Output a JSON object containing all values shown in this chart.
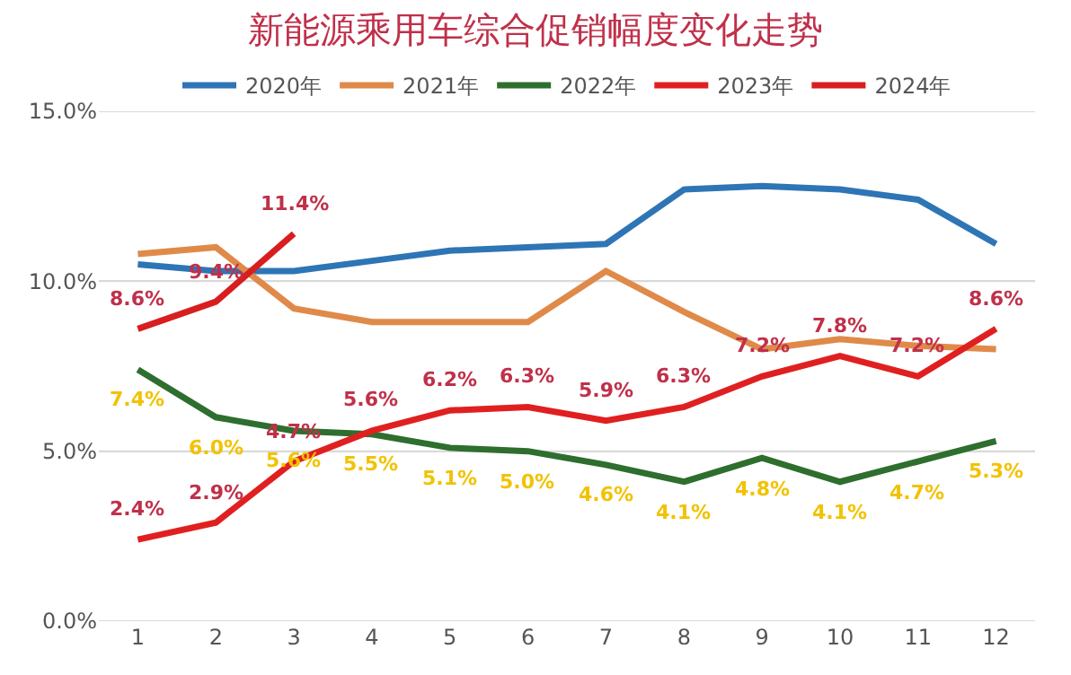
{
  "chart_data": {
    "type": "line",
    "title": "新能源乘用车综合促销幅度变化走势",
    "x": [
      1,
      2,
      3,
      4,
      5,
      6,
      7,
      8,
      9,
      10,
      11,
      12
    ],
    "xlim": [
      0.5,
      12.5
    ],
    "xticks": [
      1,
      2,
      3,
      4,
      5,
      6,
      7,
      8,
      9,
      10,
      11,
      12
    ],
    "ylim": [
      0,
      15
    ],
    "yticks": [
      {
        "value": 0,
        "label": "0.0%"
      },
      {
        "value": 5,
        "label": "5.0%"
      },
      {
        "value": 10,
        "label": "10.0%"
      },
      {
        "value": 15,
        "label": "15.0%"
      }
    ],
    "grid": "y",
    "legend": "top",
    "tick_labels": "x",
    "series": [
      {
        "name": "2020年",
        "color": "#2e75b6",
        "values": [
          10.5,
          10.3,
          10.3,
          10.6,
          10.9,
          11.0,
          11.1,
          12.7,
          12.8,
          12.7,
          12.4,
          11.1
        ]
      },
      {
        "name": "2021年",
        "color": "#e08a4a",
        "values": [
          10.8,
          11.0,
          9.2,
          8.8,
          8.8,
          8.8,
          10.3,
          9.1,
          8.0,
          8.3,
          8.1,
          8.0
        ]
      },
      {
        "name": "2022年",
        "color": "#2e6e2e",
        "values": [
          7.4,
          6.0,
          5.6,
          5.5,
          5.1,
          5.0,
          4.6,
          4.1,
          4.8,
          4.1,
          4.7,
          5.3
        ],
        "value_labels": [
          "7.4%",
          "6.0%",
          "5.6%",
          "5.5%",
          "5.1%",
          "5.0%",
          "4.6%",
          "4.1%",
          "4.8%",
          "4.1%",
          "4.7%",
          "5.3%"
        ]
      },
      {
        "name": "2023年",
        "color": "#e02020",
        "values": [
          2.4,
          2.9,
          4.7,
          5.6,
          6.2,
          6.3,
          5.9,
          6.3,
          7.2,
          7.8,
          7.2,
          8.6
        ],
        "value_labels": [
          "2.4%",
          "2.9%",
          "4.7%",
          "5.6%",
          "6.2%",
          "6.3%",
          "5.9%",
          "6.3%",
          "7.2%",
          "7.8%",
          "7.2%",
          "8.6%"
        ]
      },
      {
        "name": "2024年",
        "color": "#d81e1e",
        "values": [
          8.6,
          9.4,
          11.4,
          null,
          null,
          null,
          null,
          null,
          null,
          null,
          null,
          null
        ],
        "value_labels": [
          "8.6%",
          "9.4%",
          "11.4%",
          null,
          null,
          null,
          null,
          null,
          null,
          null,
          null,
          null
        ]
      }
    ]
  }
}
